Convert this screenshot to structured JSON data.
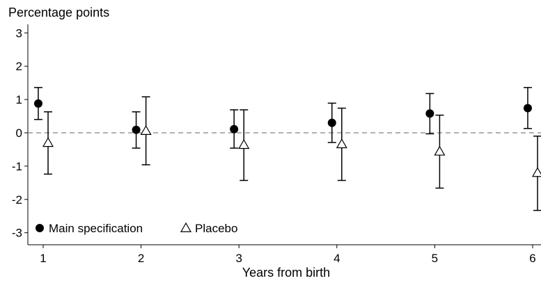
{
  "chart_data": {
    "type": "scatter",
    "title": "",
    "ylabel": "Percentage points",
    "xlabel": "Years from birth",
    "x_ticks": [
      1,
      2,
      3,
      4,
      5,
      6
    ],
    "y_ticks": [
      3,
      2,
      1,
      0,
      -1,
      -2,
      -3
    ],
    "xlim": [
      0.85,
      6.1
    ],
    "ylim": [
      -3.3,
      3.3
    ],
    "reference_line": {
      "y": 0,
      "style": "dashed",
      "color": "#808080"
    },
    "legend": {
      "placement": "bottom-left"
    },
    "series": [
      {
        "name": "Main specification",
        "marker": "filled-circle",
        "color": "#000000",
        "x_offset": -0.05,
        "points": [
          {
            "x": 1,
            "y": 0.88,
            "lo": 0.4,
            "hi": 1.36
          },
          {
            "x": 2,
            "y": 0.09,
            "lo": -0.46,
            "hi": 0.63
          },
          {
            "x": 3,
            "y": 0.11,
            "lo": -0.46,
            "hi": 0.69
          },
          {
            "x": 4,
            "y": 0.3,
            "lo": -0.29,
            "hi": 0.89
          },
          {
            "x": 5,
            "y": 0.58,
            "lo": -0.03,
            "hi": 1.18
          },
          {
            "x": 6,
            "y": 0.74,
            "lo": 0.13,
            "hi": 1.36
          }
        ]
      },
      {
        "name": "Placebo",
        "marker": "hollow-triangle",
        "color": "#000000",
        "x_offset": 0.05,
        "points": [
          {
            "x": 1,
            "y": -0.3,
            "lo": -1.24,
            "hi": 0.63
          },
          {
            "x": 2,
            "y": 0.06,
            "lo": -0.96,
            "hi": 1.08
          },
          {
            "x": 3,
            "y": -0.36,
            "lo": -1.43,
            "hi": 0.69
          },
          {
            "x": 4,
            "y": -0.34,
            "lo": -1.43,
            "hi": 0.74
          },
          {
            "x": 5,
            "y": -0.56,
            "lo": -1.66,
            "hi": 0.53
          },
          {
            "x": 6,
            "y": -1.2,
            "lo": -2.33,
            "hi": -0.1
          }
        ]
      }
    ]
  }
}
